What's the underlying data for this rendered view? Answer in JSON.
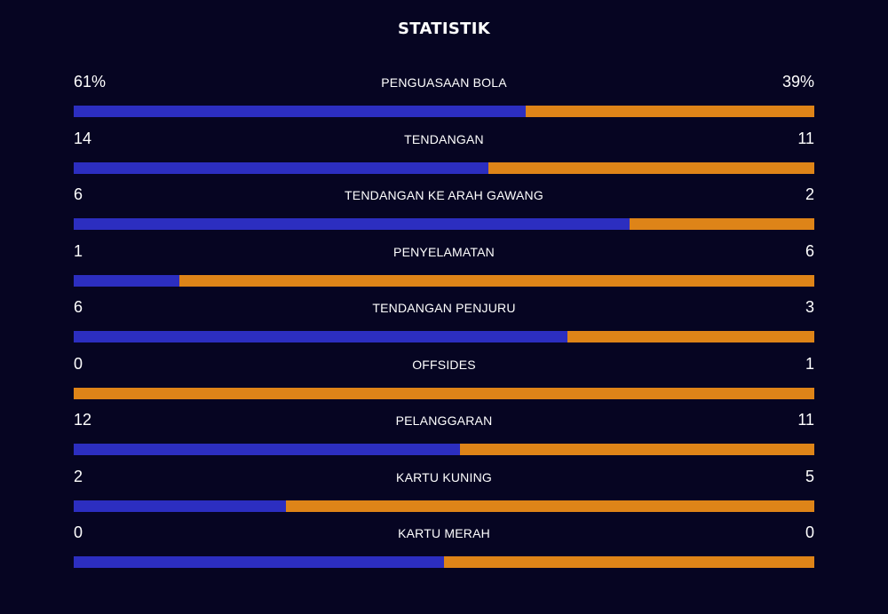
{
  "title": "STATISTIK",
  "colors": {
    "background": "#060522",
    "home": "#2c2ec0",
    "away": "#de8418",
    "text": "#ffffff"
  },
  "stats": [
    {
      "label": "PENGUASAAN BOLA",
      "home": "61%",
      "away": "39%",
      "home_share": 0.61
    },
    {
      "label": "TENDANGAN",
      "home": "14",
      "away": "11",
      "home_share": 0.56
    },
    {
      "label": "TENDANGAN KE ARAH GAWANG",
      "home": "6",
      "away": "2",
      "home_share": 0.75
    },
    {
      "label": "PENYELAMATAN",
      "home": "1",
      "away": "6",
      "home_share": 0.143
    },
    {
      "label": "TENDANGAN PENJURU",
      "home": "6",
      "away": "3",
      "home_share": 0.667
    },
    {
      "label": "OFFSIDES",
      "home": "0",
      "away": "1",
      "home_share": 0.0
    },
    {
      "label": "PELANGGARAN",
      "home": "12",
      "away": "11",
      "home_share": 0.522
    },
    {
      "label": "KARTU KUNING",
      "home": "2",
      "away": "5",
      "home_share": 0.286
    },
    {
      "label": "KARTU MERAH",
      "home": "0",
      "away": "0",
      "home_share": 0.5
    }
  ]
}
